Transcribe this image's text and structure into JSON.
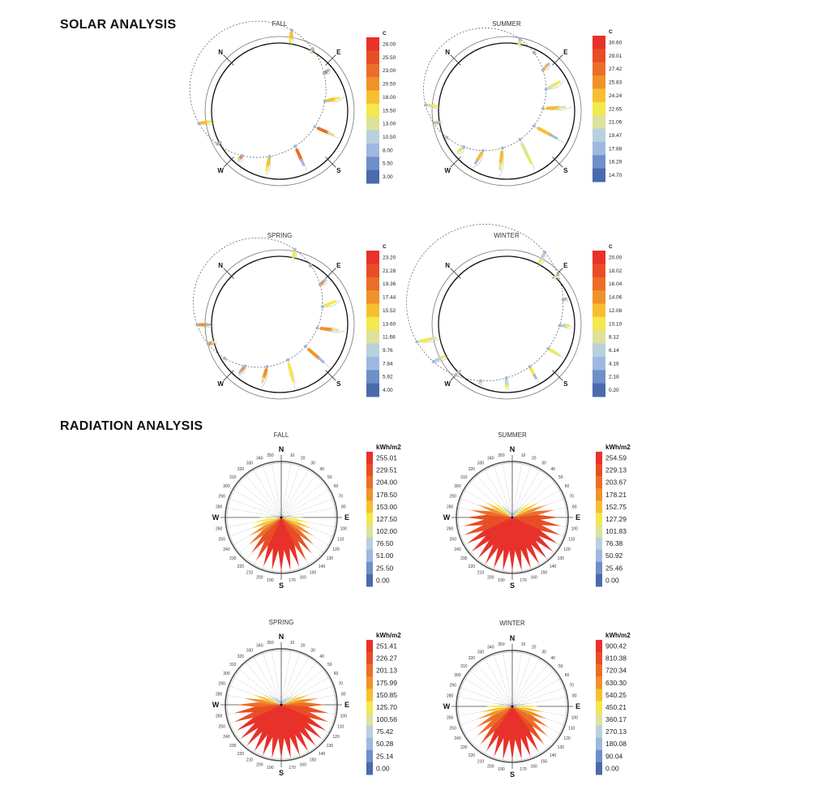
{
  "solar": {
    "heading": "SOLAR ANALYSIS",
    "unit": "C",
    "compass": [
      "N",
      "E",
      "S",
      "W"
    ],
    "charts": [
      {
        "title": "FALL",
        "legend": [
          "28.00",
          "25.50",
          "23.00",
          "20.50",
          "18.00",
          "15.50",
          "13.00",
          "10.50",
          "8.00",
          "5.50",
          "3.00"
        ]
      },
      {
        "title": "SUMMER",
        "legend": [
          "30.60",
          "29.01",
          "27.42",
          "25.83",
          "24.24",
          "22.65",
          "21.06",
          "19.47",
          "17.88",
          "16.29",
          "14.70"
        ]
      },
      {
        "title": "SPRING",
        "legend": [
          "23.20",
          "21.28",
          "19.36",
          "17.44",
          "15.52",
          "13.60",
          "11.68",
          "9.76",
          "7.84",
          "5.92",
          "4.00"
        ]
      },
      {
        "title": "WINTER",
        "legend": [
          "20.00",
          "18.02",
          "16.04",
          "14.06",
          "12.08",
          "10.10",
          "8.12",
          "6.14",
          "4.16",
          "2.18",
          "0.20"
        ]
      }
    ]
  },
  "radiation": {
    "heading": "RADIATION ANALYSIS",
    "unit": "kWh/m2",
    "compass": [
      "N",
      "E",
      "S",
      "W"
    ],
    "charts": [
      {
        "title": "FALL",
        "legend": [
          "255.01",
          "229.51",
          "204.00",
          "178.50",
          "153.00",
          "127.50",
          "102.00",
          "76.50",
          "51.00",
          "25.50",
          "0.00"
        ]
      },
      {
        "title": "SUMMER",
        "legend": [
          "254.59",
          "229.13",
          "203.67",
          "178.21",
          "152.75",
          "127.29",
          "101.83",
          "76.38",
          "50.92",
          "25.46",
          "0.00"
        ]
      },
      {
        "title": "SPRING",
        "legend": [
          "251.41",
          "226.27",
          "201.13",
          "175.99",
          "150.85",
          "125.70",
          "100.56",
          "75.42",
          "50.28",
          "25.14",
          "0.00"
        ]
      },
      {
        "title": "WINTER",
        "legend": [
          "900.42",
          "810.38",
          "720.34",
          "630.30",
          "540.25",
          "450.21",
          "360.17",
          "270.13",
          "180.08",
          "90.04",
          "0.00"
        ]
      }
    ]
  },
  "colors": [
    "#e8312a",
    "#e84e25",
    "#ec6e26",
    "#f0922a",
    "#f7bf2f",
    "#f3e84e",
    "#dde29a",
    "#b9d1dd",
    "#9eb8e0",
    "#6f8fc8",
    "#4a6aad"
  ],
  "chart_data": {
    "type": "radial",
    "direction_labels": [
      "10",
      "20",
      "30",
      "40",
      "50",
      "60",
      "70",
      "80",
      "100",
      "110",
      "120",
      "130",
      "140",
      "150",
      "160",
      "170",
      "190",
      "200",
      "210",
      "220",
      "230",
      "240",
      "250",
      "260",
      "280",
      "290",
      "300",
      "310",
      "320",
      "330",
      "340",
      "350"
    ],
    "directions_deg": [
      0,
      10,
      20,
      30,
      40,
      50,
      60,
      70,
      80,
      90,
      100,
      110,
      120,
      130,
      140,
      150,
      160,
      170,
      180,
      190,
      200,
      210,
      220,
      230,
      240,
      250,
      260,
      270,
      280,
      290,
      300,
      310,
      320,
      330,
      340,
      350
    ],
    "series": [
      {
        "name": "FALL",
        "max": 255.01,
        "values": [
          0,
          5,
          5,
          8,
          10,
          12,
          15,
          20,
          60,
          110,
          135,
          155,
          175,
          200,
          220,
          235,
          245,
          250,
          255,
          250,
          245,
          235,
          220,
          200,
          175,
          155,
          135,
          110,
          60,
          20,
          15,
          12,
          10,
          8,
          5,
          5
        ]
      },
      {
        "name": "SUMMER",
        "max": 254.59,
        "values": [
          15,
          25,
          40,
          60,
          85,
          115,
          145,
          175,
          200,
          220,
          232,
          240,
          245,
          250,
          252,
          253,
          254,
          254,
          254,
          254,
          254,
          253,
          252,
          250,
          245,
          240,
          232,
          220,
          200,
          175,
          145,
          115,
          85,
          60,
          40,
          25
        ]
      },
      {
        "name": "SPRING",
        "max": 251.41,
        "values": [
          10,
          15,
          25,
          40,
          55,
          80,
          110,
          140,
          175,
          205,
          222,
          232,
          240,
          245,
          248,
          250,
          251,
          251,
          251,
          251,
          251,
          250,
          248,
          245,
          240,
          232,
          222,
          205,
          175,
          140,
          110,
          80,
          55,
          40,
          25,
          15
        ]
      },
      {
        "name": "WINTER",
        "max": 900.42,
        "values": [
          10,
          15,
          20,
          30,
          40,
          60,
          90,
          150,
          300,
          450,
          540,
          620,
          690,
          760,
          820,
          860,
          885,
          895,
          900,
          895,
          885,
          860,
          820,
          760,
          690,
          620,
          540,
          450,
          300,
          150,
          90,
          60,
          40,
          30,
          20,
          15
        ]
      }
    ]
  }
}
